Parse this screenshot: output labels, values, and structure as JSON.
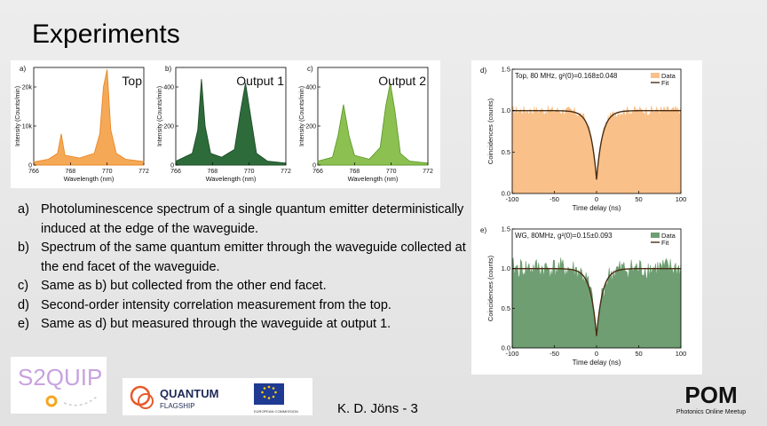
{
  "slide": {
    "title": "Experiments",
    "footer": "K. D. Jöns  - 3",
    "bullets": [
      {
        "label": "a)",
        "text": "Photoluminescence spectrum of a single quantum emitter deterministically induced at the edge of the waveguide."
      },
      {
        "label": "b)",
        "text": "Spectrum of the same quantum emitter through the waveguide collected at the end facet of the waveguide."
      },
      {
        "label": "c)",
        "text": "Same as b) but collected from the other end facet."
      },
      {
        "label": "d)",
        "text": "Second-order intensity correlation measurement from the top."
      },
      {
        "label": "e)",
        "text": "Same as d) but measured through the waveguide at output 1."
      }
    ]
  },
  "logos": {
    "s2quip": "S2QUIP",
    "quantum": "QUANTUM",
    "flagship": "FLAGSHIP",
    "eu": "EUROPEAN COMMISSION",
    "pom": "POM",
    "pom_sub": "Photonics Online Meetup"
  },
  "colors": {
    "orange": "#f5a956",
    "dark_green": "#2e6b3a",
    "light_green": "#8cc152",
    "corr_orange": "#f9c08a",
    "corr_green": "#6e9e72"
  },
  "chart_data": [
    {
      "type": "area",
      "panel": "a)",
      "label": "Top",
      "xlabel": "Wavelength (nm)",
      "ylabel": "Intensity (Counts/min)",
      "xlim": [
        766,
        772
      ],
      "ylim": [
        0,
        25000
      ],
      "xticks": [
        "766",
        "768",
        "770",
        "772"
      ],
      "yticks": [
        "0",
        "10k",
        "20k"
      ],
      "x": [
        766,
        766.8,
        767.3,
        767.5,
        767.7,
        768.5,
        769.3,
        769.6,
        769.8,
        770,
        770.2,
        770.5,
        771,
        772
      ],
      "y": [
        800,
        1500,
        3000,
        8000,
        2500,
        1800,
        3000,
        8000,
        20000,
        24500,
        9000,
        3000,
        1500,
        900
      ]
    },
    {
      "type": "area",
      "panel": "b)",
      "label": "Output 1",
      "xlabel": "Wavelength (nm)",
      "ylabel": "Intensity (Counts/min)",
      "xlim": [
        766,
        772
      ],
      "ylim": [
        0,
        500
      ],
      "xticks": [
        "766",
        "768",
        "770",
        "772"
      ],
      "yticks": [
        "0",
        "200",
        "400"
      ],
      "x": [
        766,
        766.9,
        767.2,
        767.4,
        767.6,
        767.9,
        768.5,
        769.2,
        769.5,
        769.8,
        770.1,
        770.4,
        771,
        772
      ],
      "y": [
        20,
        60,
        180,
        440,
        200,
        60,
        40,
        80,
        260,
        420,
        240,
        60,
        20,
        10
      ]
    },
    {
      "type": "area",
      "panel": "c)",
      "label": "Output 2",
      "xlabel": "Wavelength (nm)",
      "ylabel": "Intensity (Counts/min)",
      "xlim": [
        766,
        772
      ],
      "ylim": [
        0,
        500
      ],
      "xticks": [
        "766",
        "768",
        "770",
        "772"
      ],
      "yticks": [
        "0",
        "200",
        "400"
      ],
      "x": [
        766,
        766.8,
        767.1,
        767.4,
        767.7,
        768,
        768.8,
        769.4,
        769.7,
        769.95,
        770.2,
        770.5,
        771,
        772
      ],
      "y": [
        20,
        40,
        150,
        310,
        150,
        50,
        30,
        90,
        300,
        420,
        280,
        60,
        20,
        10
      ]
    },
    {
      "type": "area",
      "panel": "d)",
      "annotation": "Top, 80 MHz, g²(0)=0.168±0.048",
      "xlabel": "Time delay (ns)",
      "ylabel": "Coincidences (counts)",
      "xlim": [
        -100,
        100
      ],
      "ylim": [
        0,
        1.5
      ],
      "xticks": [
        "-100",
        "-50",
        "0",
        "50",
        "100"
      ],
      "yticks": [
        "0.0",
        "0.5",
        "1.0",
        "1.5"
      ],
      "legend": [
        "Data",
        "Fit"
      ],
      "legend_position": "top-right",
      "g2_0": 0.168,
      "fit_baseline": 1.0
    },
    {
      "type": "area",
      "panel": "e)",
      "annotation": "WG, 80MHz, g²(0)=0.15±0.093",
      "xlabel": "Time delay (ns)",
      "ylabel": "Coincidences (counts)",
      "xlim": [
        -100,
        100
      ],
      "ylim": [
        0,
        1.5
      ],
      "xticks": [
        "-100",
        "-50",
        "0",
        "50",
        "100"
      ],
      "yticks": [
        "0.0",
        "0.5",
        "1.0",
        "1.5"
      ],
      "legend": [
        "Data",
        "Fit"
      ],
      "legend_position": "top-right",
      "g2_0": 0.15,
      "fit_baseline": 1.0
    }
  ]
}
